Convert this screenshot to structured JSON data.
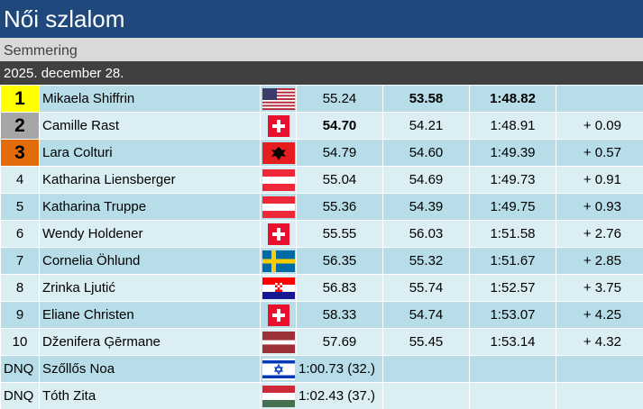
{
  "header": {
    "title": "Női szlalom",
    "venue": "Semmering",
    "date": "2025. december 28."
  },
  "results": [
    {
      "rank": "1",
      "name": "Mikaela Shiffrin",
      "flag": "usa-flag-icon",
      "run1": "55.24",
      "run2": "53.58",
      "total": "1:48.82",
      "diff": ""
    },
    {
      "rank": "2",
      "name": "Camille Rast",
      "flag": "switzerland-flag-icon",
      "run1": "54.70",
      "run2": "54.21",
      "total": "1:48.91",
      "diff": "+ 0.09"
    },
    {
      "rank": "3",
      "name": "Lara Colturi",
      "flag": "albania-flag-icon",
      "run1": "54.79",
      "run2": "54.60",
      "total": "1:49.39",
      "diff": "+ 0.57"
    },
    {
      "rank": "4",
      "name": "Katharina Liensberger",
      "flag": "austria-flag-icon",
      "run1": "55.04",
      "run2": "54.69",
      "total": "1:49.73",
      "diff": "+ 0.91"
    },
    {
      "rank": "5",
      "name": "Katharina Truppe",
      "flag": "austria-flag-icon",
      "run1": "55.36",
      "run2": "54.39",
      "total": "1:49.75",
      "diff": "+ 0.93"
    },
    {
      "rank": "6",
      "name": "Wendy Holdener",
      "flag": "switzerland-flag-icon",
      "run1": "55.55",
      "run2": "56.03",
      "total": "1:51.58",
      "diff": "+ 2.76"
    },
    {
      "rank": "7",
      "name": "Cornelia Öhlund",
      "flag": "sweden-flag-icon",
      "run1": "56.35",
      "run2": "55.32",
      "total": "1:51.67",
      "diff": "+ 2.85"
    },
    {
      "rank": "8",
      "name": "Zrinka Ljutić",
      "flag": "croatia-flag-icon",
      "run1": "56.83",
      "run2": "55.74",
      "total": "1:52.57",
      "diff": "+ 3.75"
    },
    {
      "rank": "9",
      "name": "Eliane Christen",
      "flag": "switzerland-flag-icon",
      "run1": "58.33",
      "run2": "54.74",
      "total": "1:53.07",
      "diff": "+ 4.25"
    },
    {
      "rank": "10",
      "name": "Dženifera Ģērmane",
      "flag": "latvia-flag-icon",
      "run1": "57.69",
      "run2": "55.45",
      "total": "1:53.14",
      "diff": "+ 4.32"
    }
  ],
  "dnq": [
    {
      "rank": "DNQ",
      "name": "Szőllős Noa",
      "flag": "israel-flag-icon",
      "result": "1:00.73 (32.)"
    },
    {
      "rank": "DNQ",
      "name": "Tóth Zita",
      "flag": "hungary-flag-icon",
      "result": "1:02.43 (37.)"
    }
  ],
  "colors": {
    "title_bg": "#1f497d",
    "venue_bg": "#d9d9d9",
    "date_bg": "#404040",
    "row_odd": "#b7dde8",
    "row_even": "#daeef3",
    "gold": "#ffff00",
    "silver": "#a6a6a6",
    "bronze": "#e26b0a"
  }
}
